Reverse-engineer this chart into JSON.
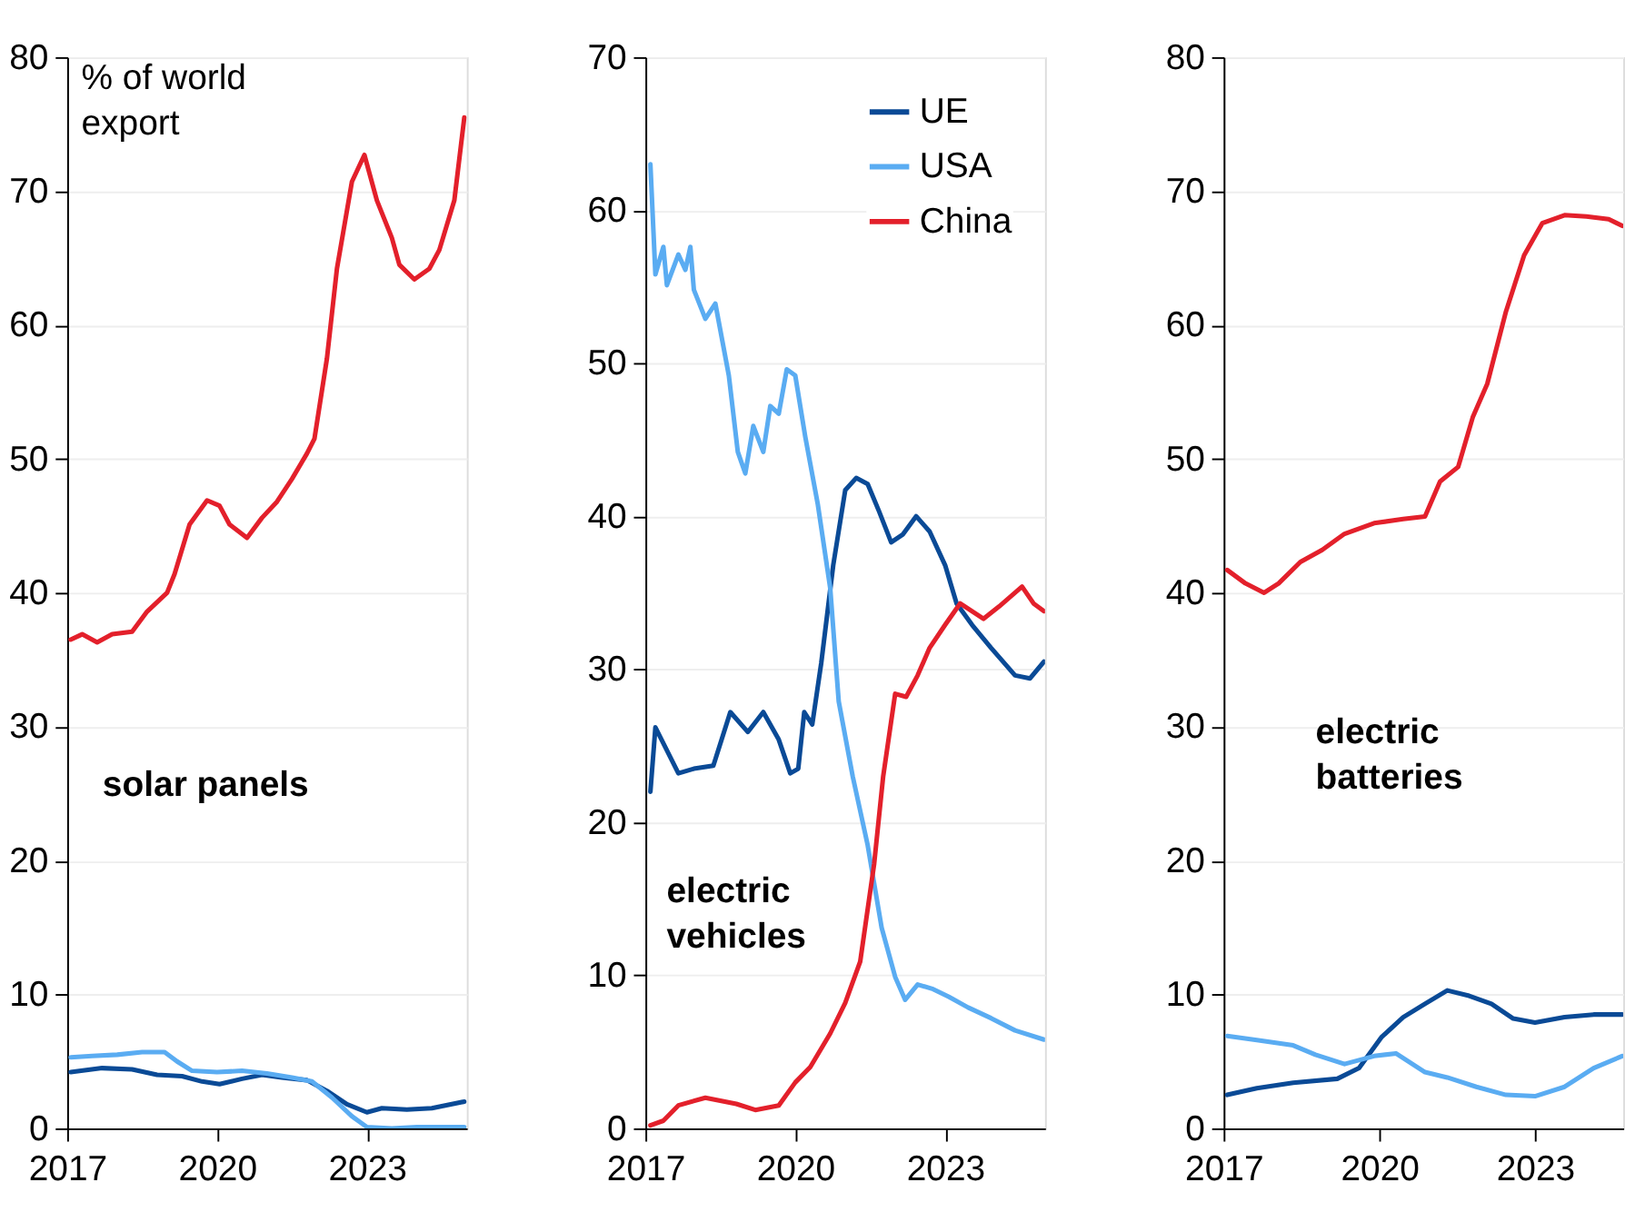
{
  "chart_data": [
    {
      "type": "line",
      "annotations": [
        "% of world\nexport",
        "solar panels"
      ],
      "xlim": [
        2017,
        2025
      ],
      "xticks": [
        2017,
        2020,
        2023
      ],
      "ylim": [
        0,
        80
      ],
      "yticks": [
        0,
        10,
        20,
        30,
        40,
        50,
        60,
        70,
        80
      ],
      "grid": "y",
      "legend": false,
      "line_style": "solid",
      "marker": "none",
      "series": [
        {
          "color": "#0a4a96",
          "x": [
            2017.07,
            2017.7,
            2018.3,
            2018.8,
            2019.3,
            2019.7,
            2020.05,
            2020.5,
            2020.9,
            2021.3,
            2021.8,
            2022.2,
            2022.6,
            2023.0,
            2023.3,
            2023.8,
            2024.3,
            2024.95
          ],
          "values": [
            4.2,
            4.5,
            4.4,
            4.0,
            3.9,
            3.5,
            3.3,
            3.7,
            4.0,
            3.8,
            3.6,
            2.8,
            1.8,
            1.2,
            1.5,
            1.4,
            1.5,
            2.0
          ]
        },
        {
          "color": "#5aacf2",
          "x": [
            2017.07,
            2017.5,
            2018.0,
            2018.5,
            2018.95,
            2019.2,
            2019.5,
            2020.0,
            2020.5,
            2021.0,
            2021.5,
            2021.9,
            2022.3,
            2022.7,
            2023.0,
            2023.5,
            2024.0,
            2024.95
          ],
          "values": [
            5.3,
            5.4,
            5.5,
            5.7,
            5.7,
            5.0,
            4.3,
            4.2,
            4.3,
            4.1,
            3.8,
            3.5,
            2.3,
            0.9,
            0.1,
            0.0,
            0.1,
            0.1
          ]
        },
        {
          "color": "#e3202b",
          "x": [
            2017.07,
            2017.3,
            2017.6,
            2017.9,
            2018.3,
            2018.6,
            2019.0,
            2019.15,
            2019.45,
            2019.8,
            2020.05,
            2020.25,
            2020.6,
            2020.9,
            2021.2,
            2021.5,
            2021.8,
            2021.95,
            2022.2,
            2022.4,
            2022.7,
            2022.95,
            2023.2,
            2023.5,
            2023.65,
            2023.95,
            2024.25,
            2024.45,
            2024.75,
            2024.95
          ],
          "values": [
            36.5,
            36.9,
            36.3,
            36.9,
            37.1,
            38.6,
            40.0,
            41.4,
            45.1,
            46.9,
            46.5,
            45.1,
            44.1,
            45.6,
            46.8,
            48.5,
            50.4,
            51.5,
            57.5,
            64.2,
            70.7,
            72.7,
            69.3,
            66.5,
            64.5,
            63.4,
            64.2,
            65.6,
            69.3,
            75.5
          ]
        }
      ]
    },
    {
      "type": "line",
      "annotations": [
        "electric\nvehicles"
      ],
      "xlim": [
        2017,
        2025
      ],
      "xticks": [
        2017,
        2020,
        2023
      ],
      "ylim": [
        0,
        70
      ],
      "yticks": [
        0,
        10,
        20,
        30,
        40,
        50,
        60,
        70
      ],
      "grid": "y",
      "legend": "top right",
      "line_style": "solid",
      "marker": "none",
      "series": [
        {
          "name": "UE",
          "color": "#0a4a96",
          "x": [
            2017.1,
            2017.2,
            2017.43,
            2017.66,
            2017.97,
            2018.36,
            2018.7,
            2019.05,
            2019.36,
            2019.67,
            2019.9,
            2020.06,
            2020.18,
            2020.34,
            2020.52,
            2020.76,
            2021.0,
            2021.22,
            2021.45,
            2021.68,
            2021.92,
            2022.15,
            2022.42,
            2022.69,
            2023.0,
            2023.23,
            2023.54,
            2023.92,
            2024.4,
            2024.7,
            2024.98
          ],
          "values": [
            22.0,
            26.2,
            24.7,
            23.2,
            23.5,
            23.7,
            27.2,
            25.9,
            27.2,
            25.4,
            23.2,
            23.5,
            27.2,
            26.4,
            30.4,
            36.8,
            41.7,
            42.5,
            42.1,
            40.3,
            38.3,
            38.8,
            40.0,
            39.0,
            36.8,
            34.3,
            32.9,
            31.4,
            29.6,
            29.4,
            30.5
          ]
        },
        {
          "name": "USA",
          "color": "#5aacf2",
          "x": [
            2017.1,
            2017.2,
            2017.36,
            2017.43,
            2017.66,
            2017.8,
            2017.9,
            2017.97,
            2018.2,
            2018.4,
            2018.67,
            2018.85,
            2019.0,
            2019.16,
            2019.36,
            2019.5,
            2019.67,
            2019.83,
            2020.0,
            2020.2,
            2020.45,
            2020.7,
            2020.87,
            2021.15,
            2021.45,
            2021.73,
            2022.0,
            2022.2,
            2022.45,
            2022.76,
            2023.07,
            2023.46,
            2023.92,
            2024.4,
            2024.98
          ],
          "values": [
            63.0,
            55.8,
            57.6,
            55.1,
            57.1,
            56.1,
            57.6,
            54.8,
            52.9,
            53.9,
            49.2,
            44.2,
            42.8,
            45.9,
            44.2,
            47.2,
            46.7,
            49.6,
            49.2,
            45.2,
            40.8,
            35.3,
            27.9,
            23.0,
            18.5,
            13.1,
            9.9,
            8.4,
            9.4,
            9.1,
            8.6,
            7.9,
            7.2,
            6.4,
            5.8
          ]
        },
        {
          "name": "China",
          "color": "#e3202b",
          "x": [
            2017.1,
            2017.36,
            2017.66,
            2018.2,
            2018.82,
            2019.2,
            2019.67,
            2020.0,
            2020.3,
            2020.7,
            2021.0,
            2021.3,
            2021.58,
            2021.76,
            2022.0,
            2022.22,
            2022.45,
            2022.69,
            2023.0,
            2023.3,
            2023.77,
            2024.08,
            2024.54,
            2024.77,
            2024.98
          ],
          "values": [
            0.2,
            0.5,
            1.5,
            2.0,
            1.6,
            1.2,
            1.5,
            3.0,
            4.0,
            6.2,
            8.2,
            10.9,
            17.3,
            23.0,
            28.4,
            28.2,
            29.6,
            31.4,
            32.9,
            34.3,
            33.3,
            34.1,
            35.4,
            34.3,
            33.8
          ]
        }
      ]
    },
    {
      "type": "line",
      "annotations": [
        "electric\nbatteries"
      ],
      "xlim": [
        2017,
        2024.7
      ],
      "xticks": [
        2017,
        2020,
        2023
      ],
      "ylim": [
        0,
        80
      ],
      "yticks": [
        0,
        10,
        20,
        30,
        40,
        50,
        60,
        70,
        80
      ],
      "grid": "y",
      "legend": false,
      "line_style": "solid",
      "marker": "none",
      "series": [
        {
          "color": "#0a4a96",
          "x": [
            2017.07,
            2017.64,
            2018.34,
            2019.19,
            2019.61,
            2020.04,
            2020.46,
            2020.88,
            2021.31,
            2021.73,
            2022.16,
            2022.58,
            2023.0,
            2023.57,
            2024.13,
            2024.68
          ],
          "values": [
            2.5,
            3.0,
            3.4,
            3.7,
            4.5,
            6.8,
            8.3,
            9.3,
            10.3,
            9.9,
            9.3,
            8.2,
            7.9,
            8.3,
            8.5,
            8.5
          ]
        },
        {
          "color": "#5aacf2",
          "x": [
            2017.07,
            2017.64,
            2018.34,
            2018.77,
            2019.33,
            2019.9,
            2020.32,
            2020.88,
            2021.31,
            2021.87,
            2022.44,
            2023.0,
            2023.57,
            2024.13,
            2024.68
          ],
          "values": [
            6.9,
            6.6,
            6.2,
            5.5,
            4.8,
            5.4,
            5.6,
            4.2,
            3.8,
            3.1,
            2.5,
            2.4,
            3.1,
            4.5,
            5.4
          ]
        },
        {
          "color": "#e3202b",
          "x": [
            2017.07,
            2017.42,
            2017.78,
            2018.06,
            2018.48,
            2018.9,
            2019.33,
            2019.9,
            2020.46,
            2020.88,
            2021.17,
            2021.52,
            2021.8,
            2022.08,
            2022.44,
            2022.79,
            2023.14,
            2023.57,
            2023.99,
            2024.42,
            2024.68
          ],
          "values": [
            41.7,
            40.7,
            40.0,
            40.7,
            42.3,
            43.2,
            44.4,
            45.2,
            45.5,
            45.7,
            48.3,
            49.4,
            53.1,
            55.6,
            61.0,
            65.2,
            67.6,
            68.2,
            68.1,
            67.9,
            67.4
          ]
        }
      ]
    }
  ]
}
